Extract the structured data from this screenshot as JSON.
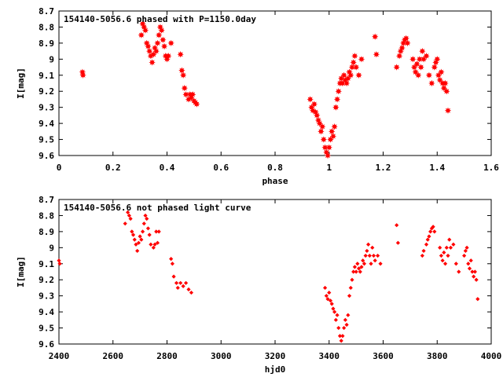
{
  "chart_data": [
    {
      "type": "scatter",
      "title": "154140-5056.6 phased with P=1150.0day",
      "xlabel": "phase",
      "ylabel": "I[mag]",
      "xlim": [
        0,
        1.6
      ],
      "ylim": [
        9.6,
        8.7
      ],
      "y_inverted": true,
      "grid": false,
      "legend": "none",
      "marker": "star",
      "color": "#ff0000",
      "xticks": [
        "0",
        "0.2",
        "0.4",
        "0.6",
        "0.8",
        "1",
        "1.2",
        "1.4",
        "1.6"
      ],
      "xtick_values": [
        0,
        0.2,
        0.4,
        0.6,
        0.8,
        1.0,
        1.2,
        1.4,
        1.6
      ],
      "yticks": [
        "8.7",
        "8.8",
        "8.9",
        "9",
        "9.1",
        "9.2",
        "9.3",
        "9.4",
        "9.5",
        "9.6"
      ],
      "ytick_values": [
        8.7,
        8.8,
        8.9,
        9.0,
        9.1,
        9.2,
        9.3,
        9.4,
        9.5,
        9.6
      ],
      "x": [
        0.087,
        0.089,
        0.305,
        0.31,
        0.315,
        0.32,
        0.325,
        0.33,
        0.335,
        0.34,
        0.345,
        0.35,
        0.355,
        0.36,
        0.365,
        0.37,
        0.375,
        0.38,
        0.385,
        0.39,
        0.395,
        0.4,
        0.405,
        0.415,
        0.45,
        0.455,
        0.46,
        0.465,
        0.47,
        0.48,
        0.485,
        0.49,
        0.495,
        0.5,
        0.505,
        0.51,
        0.93,
        0.935,
        0.94,
        0.945,
        0.95,
        0.955,
        0.96,
        0.965,
        0.97,
        0.975,
        0.98,
        0.985,
        0.99,
        0.995,
        1.0,
        1.005,
        1.01,
        1.015,
        1.02,
        1.025,
        1.03,
        1.035,
        1.04,
        1.045,
        1.05,
        1.055,
        1.06,
        1.065,
        1.07,
        1.075,
        1.08,
        1.085,
        1.09,
        1.095,
        1.1,
        1.11,
        1.12,
        1.17,
        1.175,
        1.25,
        1.26,
        1.265,
        1.27,
        1.275,
        1.28,
        1.285,
        1.29,
        1.31,
        1.315,
        1.32,
        1.325,
        1.33,
        1.335,
        1.34,
        1.345,
        1.35,
        1.36,
        1.37,
        1.38,
        1.39,
        1.395,
        1.4,
        1.405,
        1.41,
        1.415,
        1.42,
        1.425,
        1.43,
        1.435,
        1.44
      ],
      "y": [
        9.08,
        9.1,
        8.85,
        8.78,
        8.8,
        8.82,
        8.9,
        8.92,
        8.95,
        8.98,
        9.02,
        8.97,
        8.93,
        8.95,
        8.9,
        8.85,
        8.8,
        8.82,
        8.88,
        8.92,
        8.98,
        9.0,
        8.98,
        8.9,
        8.97,
        9.07,
        9.1,
        9.18,
        9.22,
        9.25,
        9.22,
        9.24,
        9.22,
        9.26,
        9.27,
        9.28,
        9.25,
        9.3,
        9.32,
        9.28,
        9.33,
        9.35,
        9.38,
        9.4,
        9.45,
        9.42,
        9.5,
        9.55,
        9.58,
        9.6,
        9.55,
        9.5,
        9.45,
        9.48,
        9.42,
        9.3,
        9.25,
        9.2,
        9.15,
        9.12,
        9.15,
        9.1,
        9.13,
        9.15,
        9.12,
        9.08,
        9.1,
        9.05,
        9.02,
        8.98,
        9.05,
        9.1,
        9.0,
        8.86,
        8.97,
        9.05,
        8.98,
        8.95,
        8.93,
        8.9,
        8.88,
        8.87,
        8.9,
        9.0,
        9.05,
        9.08,
        9.03,
        9.1,
        9.0,
        9.05,
        8.95,
        9.0,
        8.98,
        9.1,
        9.15,
        9.05,
        9.02,
        9.0,
        9.1,
        9.13,
        9.08,
        9.15,
        9.18,
        9.15,
        9.2,
        9.32
      ]
    },
    {
      "type": "scatter",
      "title": "154140-5056.6 not phased light curve",
      "xlabel": "hjd0",
      "ylabel": "I[mag]",
      "xlim": [
        2400,
        4000
      ],
      "ylim": [
        9.6,
        8.7
      ],
      "y_inverted": true,
      "grid": false,
      "legend": "none",
      "marker": "diamond",
      "color": "#ff0000",
      "xticks": [
        "2400",
        "2600",
        "2800",
        "3000",
        "3200",
        "3400",
        "3600",
        "3800",
        "4000"
      ],
      "xtick_values": [
        2400,
        2600,
        2800,
        3000,
        3200,
        3400,
        3600,
        3800,
        4000
      ],
      "yticks": [
        "8.7",
        "8.8",
        "8.9",
        "9",
        "9.1",
        "9.2",
        "9.3",
        "9.4",
        "9.5",
        "9.6"
      ],
      "ytick_values": [
        8.7,
        8.8,
        8.9,
        9.0,
        9.1,
        9.2,
        9.3,
        9.4,
        9.5,
        9.6
      ],
      "x": [
        2400,
        2403,
        2645,
        2655,
        2660,
        2665,
        2670,
        2675,
        2680,
        2685,
        2690,
        2695,
        2700,
        2705,
        2710,
        2715,
        2720,
        2725,
        2730,
        2735,
        2740,
        2750,
        2755,
        2760,
        2765,
        2770,
        2815,
        2820,
        2825,
        2835,
        2840,
        2850,
        2860,
        2870,
        2880,
        2890,
        3385,
        3390,
        3395,
        3400,
        3405,
        3410,
        3415,
        3420,
        3425,
        3430,
        3435,
        3440,
        3445,
        3450,
        3455,
        3460,
        3465,
        3470,
        3475,
        3480,
        3485,
        3490,
        3495,
        3500,
        3505,
        3510,
        3515,
        3520,
        3525,
        3530,
        3535,
        3540,
        3545,
        3550,
        3555,
        3560,
        3565,
        3570,
        3580,
        3590,
        3650,
        3655,
        3745,
        3750,
        3760,
        3765,
        3770,
        3775,
        3780,
        3785,
        3790,
        3810,
        3815,
        3820,
        3825,
        3830,
        3835,
        3840,
        3845,
        3850,
        3860,
        3870,
        3880,
        3900,
        3905,
        3910,
        3915,
        3920,
        3925,
        3930,
        3935,
        3940,
        3945,
        3950
      ],
      "y": [
        9.08,
        9.1,
        8.85,
        8.78,
        8.8,
        8.82,
        8.9,
        8.92,
        8.95,
        8.98,
        9.02,
        8.97,
        8.93,
        8.95,
        8.9,
        8.85,
        8.8,
        8.82,
        8.88,
        8.92,
        8.98,
        9.0,
        8.98,
        8.9,
        8.97,
        8.9,
        9.07,
        9.1,
        9.18,
        9.22,
        9.25,
        9.22,
        9.24,
        9.22,
        9.26,
        9.28,
        9.25,
        9.3,
        9.32,
        9.28,
        9.33,
        9.35,
        9.38,
        9.4,
        9.45,
        9.42,
        9.5,
        9.55,
        9.58,
        9.55,
        9.5,
        9.45,
        9.48,
        9.42,
        9.3,
        9.25,
        9.2,
        9.15,
        9.12,
        9.15,
        9.1,
        9.13,
        9.15,
        9.12,
        9.08,
        9.1,
        9.05,
        9.02,
        8.98,
        9.05,
        9.1,
        9.0,
        9.05,
        9.08,
        9.05,
        9.1,
        8.86,
        8.97,
        9.05,
        9.02,
        8.98,
        8.95,
        8.93,
        8.9,
        8.88,
        8.87,
        8.9,
        9.0,
        9.05,
        9.08,
        9.03,
        9.1,
        9.0,
        9.05,
        8.95,
        9.0,
        8.98,
        9.1,
        9.15,
        9.05,
        9.02,
        9.0,
        9.1,
        9.13,
        9.08,
        9.15,
        9.18,
        9.15,
        9.2,
        9.32
      ]
    }
  ]
}
